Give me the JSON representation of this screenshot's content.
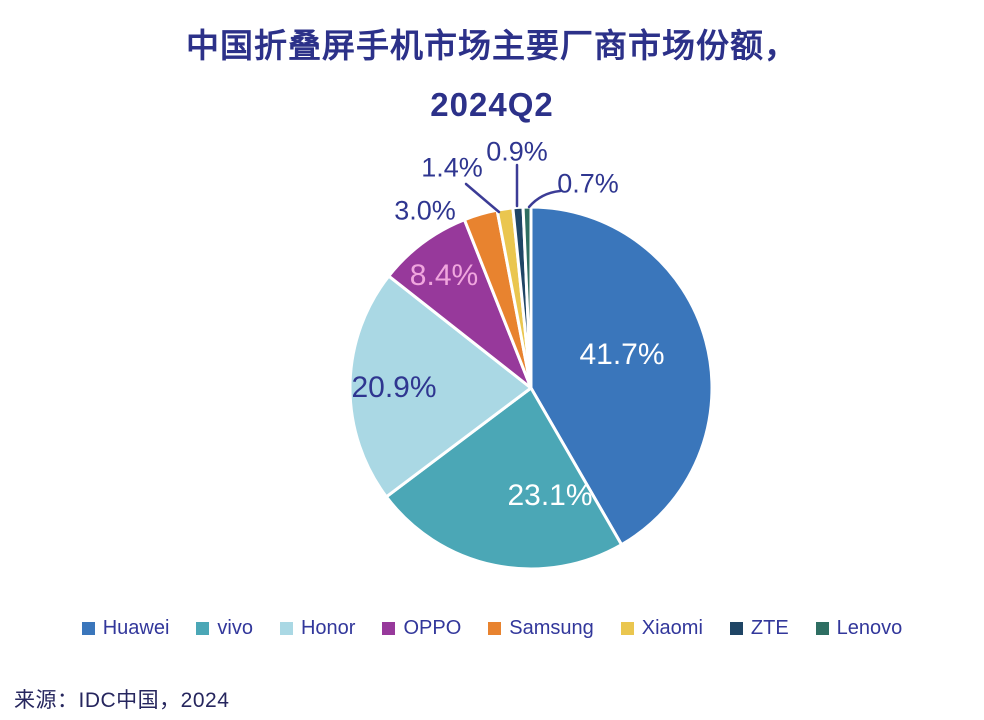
{
  "title": {
    "line1": "中国折叠屏手机市场主要厂商市场份额，",
    "line2": "2024Q2"
  },
  "source": "来源：IDC中国，2024",
  "colors": {
    "title_text": "#2C3189",
    "legend_text": "#32379B",
    "leader_line": "#3C3C96",
    "background": "#FFFFFF"
  },
  "chart_data": {
    "type": "pie",
    "title": "中国折叠屏手机市场主要厂商市场份额，2024Q2",
    "unit": "%",
    "start_angle_deg": 0,
    "direction": "clockwise",
    "legend_position": "bottom",
    "slices": [
      {
        "label": "Huawei",
        "value": 41.7,
        "display": "41.7%",
        "color": "#3A76BB",
        "label_color": "#FFFFFF"
      },
      {
        "label": "vivo",
        "value": 23.1,
        "display": "23.1%",
        "color": "#4BA7B6",
        "label_color": "#FFFFFF"
      },
      {
        "label": "Honor",
        "value": 20.9,
        "display": "20.9%",
        "color": "#AAD8E4",
        "label_color": "#2F3690"
      },
      {
        "label": "OPPO",
        "value": 8.4,
        "display": "8.4%",
        "color": "#97399B",
        "label_color": "#F0A6DE"
      },
      {
        "label": "Samsung",
        "value": 3.0,
        "display": "3.0%",
        "color": "#E8832F",
        "label_color": "#2F3690"
      },
      {
        "label": "Xiaomi",
        "value": 1.4,
        "display": "1.4%",
        "color": "#EAC64F",
        "label_color": "#2F3690"
      },
      {
        "label": "ZTE",
        "value": 0.9,
        "display": "0.9%",
        "color": "#1F4565",
        "label_color": "#2F3690"
      },
      {
        "label": "Lenovo",
        "value": 0.7,
        "display": "0.7%",
        "color": "#2E6E62",
        "label_color": "#2F3690"
      }
    ]
  }
}
